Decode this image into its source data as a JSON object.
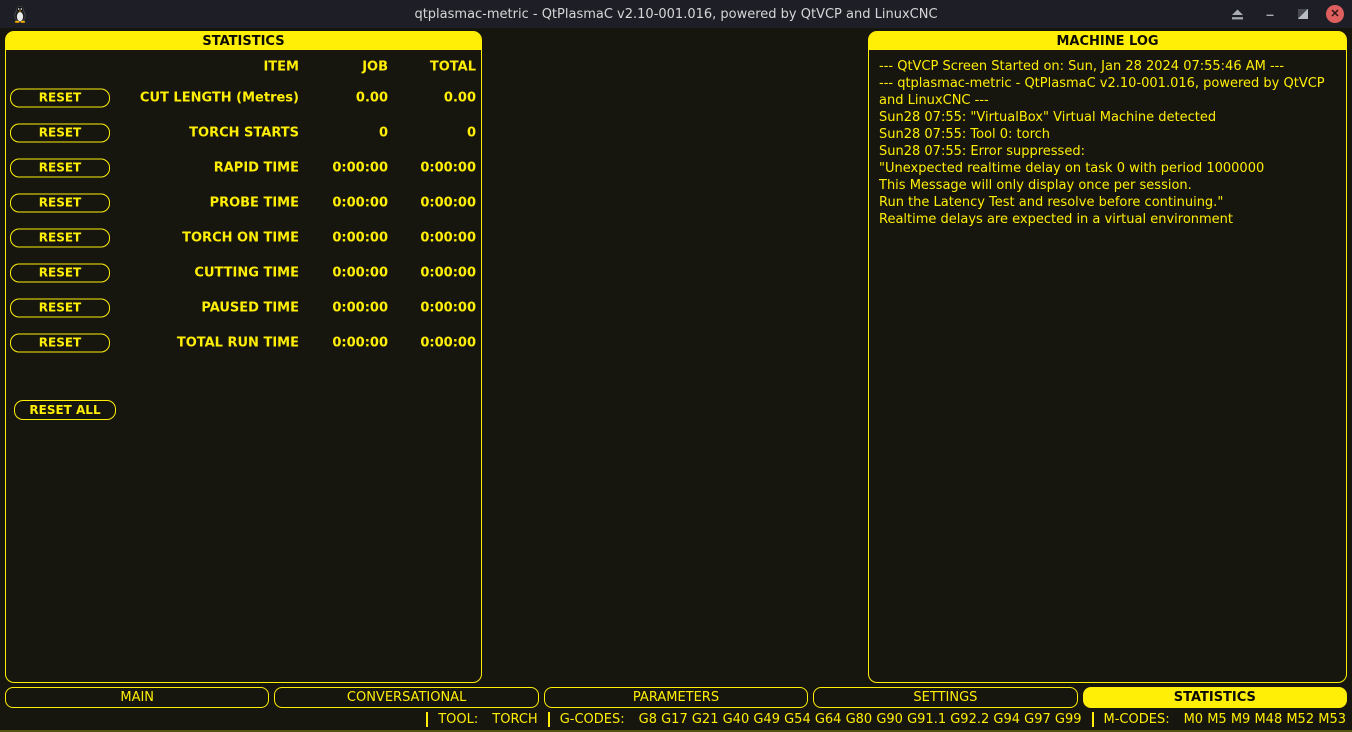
{
  "window": {
    "title": "qtplasmac-metric - QtPlasmaC v2.10-001.016, powered by QtVCP and LinuxCNC",
    "icons": {
      "minimize": "–",
      "close": "✕"
    }
  },
  "stats_panel": {
    "title": "STATISTICS",
    "columns": {
      "item": "ITEM",
      "job": "JOB",
      "total": "TOTAL"
    },
    "reset_label": "RESET",
    "reset_all_label": "RESET ALL",
    "rows": [
      {
        "item": "CUT LENGTH (Metres)",
        "job": "0.00",
        "total": "0.00"
      },
      {
        "item": "TORCH STARTS",
        "job": "0",
        "total": "0"
      },
      {
        "item": "RAPID TIME",
        "job": "0:00:00",
        "total": "0:00:00"
      },
      {
        "item": "PROBE TIME",
        "job": "0:00:00",
        "total": "0:00:00"
      },
      {
        "item": "TORCH ON TIME",
        "job": "0:00:00",
        "total": "0:00:00"
      },
      {
        "item": "CUTTING TIME",
        "job": "0:00:00",
        "total": "0:00:00"
      },
      {
        "item": "PAUSED TIME",
        "job": "0:00:00",
        "total": "0:00:00"
      },
      {
        "item": "TOTAL RUN TIME",
        "job": "0:00:00",
        "total": "0:00:00"
      }
    ]
  },
  "machine_log": {
    "title": "MACHINE LOG",
    "lines": [
      "--- QtVCP Screen Started on: Sun, Jan 28 2024 07:55:46 AM ---",
      "--- qtplasmac-metric - QtPlasmaC v2.10-001.016, powered by QtVCP",
      "and LinuxCNC ---",
      "Sun28 07:55: \"VirtualBox\" Virtual Machine detected",
      "Sun28 07:55: Tool 0: torch",
      "Sun28 07:55: Error suppressed:",
      "\"Unexpected realtime delay on task 0 with period 1000000",
      "This Message will only display once per session.",
      "Run the Latency Test and resolve before continuing.\"",
      "Realtime delays are expected in a virtual environment"
    ]
  },
  "tabs": [
    {
      "label": "MAIN",
      "active": false
    },
    {
      "label": "CONVERSATIONAL",
      "active": false
    },
    {
      "label": "PARAMETERS",
      "active": false
    },
    {
      "label": "SETTINGS",
      "active": false
    },
    {
      "label": "STATISTICS",
      "active": true
    }
  ],
  "status_bar": {
    "tool_label": "TOOL:",
    "tool_value": "TORCH",
    "gcodes_label": "G-CODES:",
    "gcodes_value": "G8 G17 G21 G40 G49 G54 G64 G80 G90 G91.1 G92.2 G94 G97 G99",
    "mcodes_label": "M-CODES:",
    "mcodes_value": "M0 M5 M9 M48 M52 M53"
  },
  "colors": {
    "accent": "#ffee06",
    "background": "#16160e",
    "titlebar": "#1e1e27",
    "close_button": "#df5f5f"
  }
}
